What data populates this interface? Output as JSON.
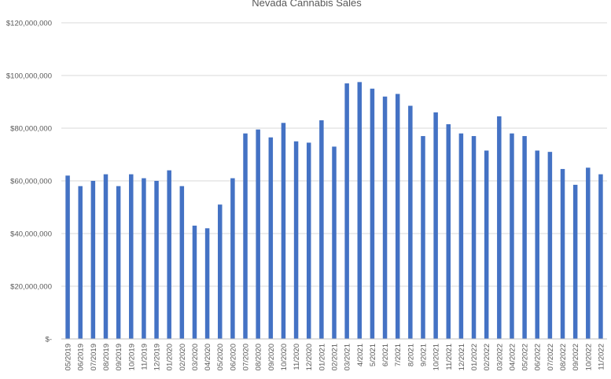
{
  "chart_data": {
    "type": "bar",
    "title": "Nevada Cannabis Sales",
    "xlabel": "",
    "ylabel": "",
    "ylim": [
      0,
      120000000
    ],
    "y_ticks": [
      0,
      20000000,
      40000000,
      60000000,
      80000000,
      100000000,
      120000000
    ],
    "y_tick_labels": [
      "$-",
      "$20,000,000",
      "$40,000,000",
      "$60,000,000",
      "$80,000,000",
      "$100,000,000",
      "$120,000,000"
    ],
    "grid": true,
    "legend": "none",
    "bar_color": "#4472c4",
    "categories": [
      "05/2019",
      "06/2019",
      "07/2019",
      "08/2019",
      "09/2019",
      "10/2019",
      "11/2019",
      "12/2019",
      "01/2020",
      "02/2020",
      "03/2020",
      "04/2020",
      "05/2020",
      "06/2020",
      "07/2020",
      "08/2020",
      "09/2020",
      "10/2020",
      "11/2020",
      "12/2020",
      "01/2021",
      "02/2021",
      "03/2021",
      "4/2021",
      "5/2021",
      "6/2021",
      "7/2021",
      "8/2021",
      "9/2021",
      "10/2021",
      "11/2021",
      "12/2021",
      "01/2022",
      "02/2022",
      "03/2022",
      "04/2022",
      "05/2022",
      "06/2022",
      "07/2022",
      "08/2022",
      "09/2022",
      "10/2022",
      "11/2022"
    ],
    "values": [
      62000000,
      58000000,
      60000000,
      62500000,
      58000000,
      62500000,
      61000000,
      60000000,
      64000000,
      58000000,
      43000000,
      42000000,
      51000000,
      61000000,
      78000000,
      79500000,
      76500000,
      82000000,
      75000000,
      74500000,
      83000000,
      73000000,
      97000000,
      97500000,
      95000000,
      92000000,
      93000000,
      88500000,
      77000000,
      86000000,
      81500000,
      78000000,
      77000000,
      71500000,
      84500000,
      78000000,
      77000000,
      71500000,
      71000000,
      64500000,
      58500000,
      65000000,
      62500000
    ]
  }
}
